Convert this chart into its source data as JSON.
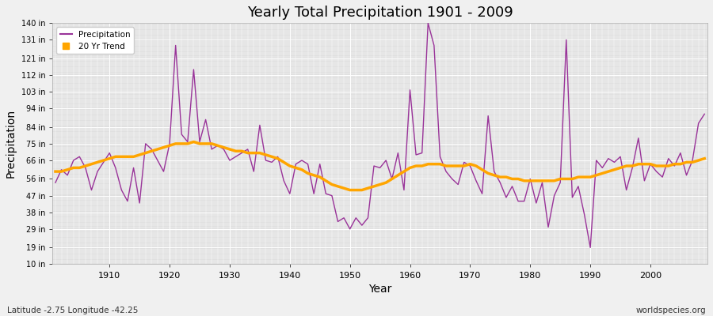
{
  "title": "Yearly Total Precipitation 1901 - 2009",
  "xlabel": "Year",
  "ylabel": "Precipitation",
  "subtitle_left": "Latitude -2.75 Longitude -42.25",
  "subtitle_right": "worldspecies.org",
  "precip_color": "#993399",
  "trend_color": "#FFA500",
  "bg_color": "#F0F0F0",
  "plot_bg_color": "#E0E0E0",
  "grid_color": "#FFFFFF",
  "ylim_min": 10,
  "ylim_max": 140,
  "yticks": [
    10,
    19,
    29,
    38,
    47,
    56,
    66,
    75,
    84,
    94,
    103,
    112,
    121,
    131,
    140
  ],
  "ytick_labels": [
    "10 in",
    "19 in",
    "29 in",
    "38 in",
    "47 in",
    "56 in",
    "66 in",
    "75 in",
    "84 in",
    "94 in",
    "103 in",
    "112 in",
    "121 in",
    "131 in",
    "140 in"
  ],
  "years": [
    1901,
    1902,
    1903,
    1904,
    1905,
    1906,
    1907,
    1908,
    1909,
    1910,
    1911,
    1912,
    1913,
    1914,
    1915,
    1916,
    1917,
    1918,
    1919,
    1920,
    1921,
    1922,
    1923,
    1924,
    1925,
    1926,
    1927,
    1928,
    1929,
    1930,
    1931,
    1932,
    1933,
    1934,
    1935,
    1936,
    1937,
    1938,
    1939,
    1940,
    1941,
    1942,
    1943,
    1944,
    1945,
    1946,
    1947,
    1948,
    1949,
    1950,
    1951,
    1952,
    1953,
    1954,
    1955,
    1956,
    1957,
    1958,
    1959,
    1960,
    1961,
    1962,
    1963,
    1964,
    1965,
    1966,
    1967,
    1968,
    1969,
    1970,
    1971,
    1972,
    1973,
    1974,
    1975,
    1976,
    1977,
    1978,
    1979,
    1980,
    1981,
    1982,
    1983,
    1984,
    1985,
    1986,
    1987,
    1988,
    1989,
    1990,
    1991,
    1992,
    1993,
    1994,
    1995,
    1996,
    1997,
    1998,
    1999,
    2000,
    2001,
    2002,
    2003,
    2004,
    2005,
    2006,
    2007,
    2008,
    2009
  ],
  "precip": [
    54,
    61,
    58,
    66,
    68,
    62,
    50,
    60,
    65,
    70,
    62,
    50,
    44,
    62,
    43,
    75,
    72,
    66,
    60,
    75,
    128,
    80,
    76,
    115,
    76,
    88,
    72,
    74,
    72,
    66,
    68,
    70,
    72,
    60,
    85,
    66,
    65,
    68,
    55,
    48,
    64,
    66,
    64,
    48,
    64,
    48,
    47,
    33,
    35,
    29,
    35,
    31,
    35,
    63,
    62,
    66,
    56,
    70,
    50,
    104,
    69,
    70,
    140,
    128,
    68,
    60,
    56,
    53,
    65,
    63,
    55,
    48,
    90,
    60,
    54,
    46,
    52,
    44,
    44,
    56,
    43,
    54,
    30,
    47,
    54,
    131,
    46,
    52,
    37,
    19,
    66,
    62,
    67,
    65,
    68,
    50,
    62,
    78,
    55,
    64,
    60,
    57,
    67,
    63,
    70,
    58,
    66,
    86,
    91
  ],
  "trend": [
    60,
    60,
    61,
    62,
    62,
    63,
    64,
    65,
    66,
    67,
    68,
    68,
    68,
    68,
    69,
    70,
    71,
    72,
    73,
    74,
    75,
    75,
    75,
    76,
    75,
    75,
    75,
    74,
    73,
    72,
    71,
    71,
    70,
    70,
    70,
    69,
    68,
    67,
    65,
    63,
    62,
    61,
    59,
    58,
    57,
    55,
    53,
    52,
    51,
    50,
    50,
    50,
    51,
    52,
    53,
    54,
    56,
    58,
    60,
    62,
    63,
    63,
    64,
    64,
    64,
    63,
    63,
    63,
    63,
    64,
    63,
    61,
    59,
    58,
    57,
    57,
    56,
    56,
    55,
    55,
    55,
    55,
    55,
    55,
    56,
    56,
    56,
    57,
    57,
    57,
    58,
    59,
    60,
    61,
    62,
    63,
    63,
    64,
    64,
    64,
    63,
    63,
    63,
    64,
    64,
    65,
    65,
    66,
    67
  ]
}
